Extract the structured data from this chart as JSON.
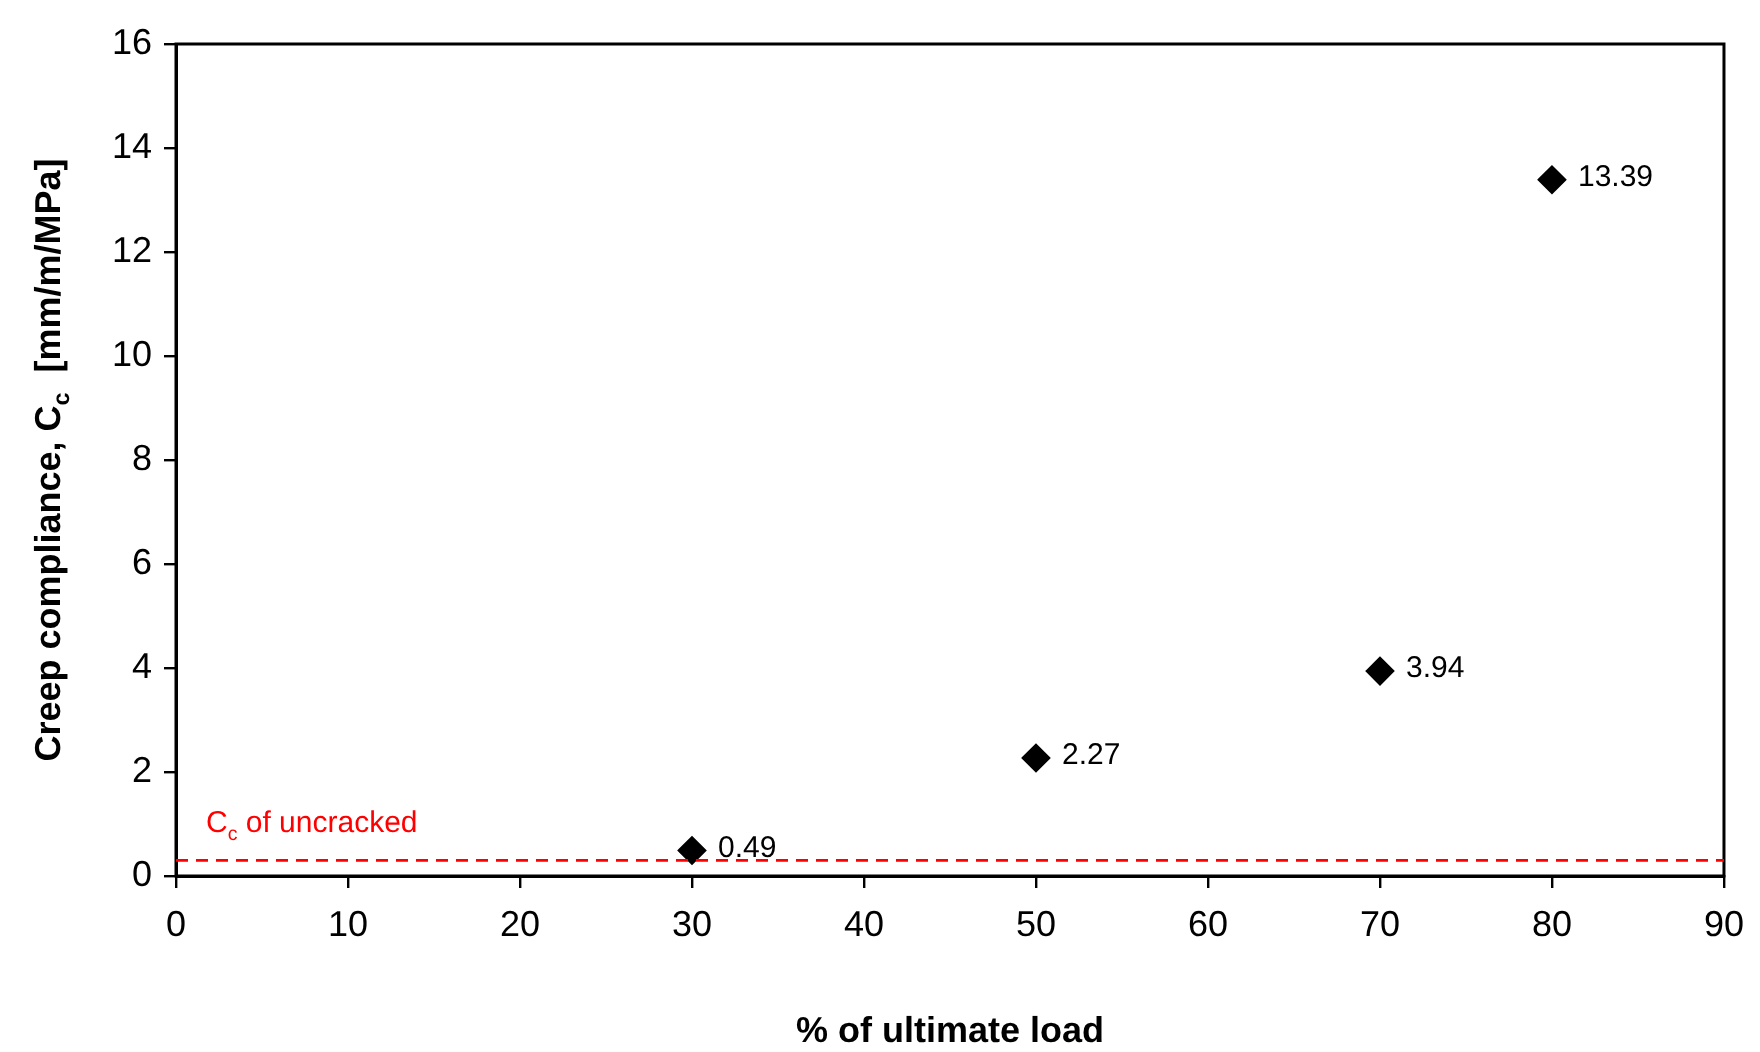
{
  "chart_data": {
    "type": "scatter",
    "xlabel": "% of ultimate load",
    "ylabel": "Creep compliance, C$_{c}$  [mm/m/MPa]",
    "x": [
      30,
      50,
      70,
      80
    ],
    "values": [
      0.49,
      2.27,
      3.94,
      13.39
    ],
    "color": "#000000",
    "marker": "diamond",
    "data_labels": true,
    "xlim": [
      0,
      90
    ],
    "xticks": [
      0,
      10,
      20,
      30,
      40,
      50,
      60,
      70,
      80,
      90
    ],
    "ylim": [
      0,
      16
    ],
    "yticks": [
      0,
      2,
      4,
      6,
      8,
      10,
      12,
      14,
      16
    ],
    "ref_lines": [
      {
        "axis": "y",
        "value": 0.3,
        "label": "C$_{c}$ of uncracked",
        "color": "#ff0000",
        "line_style": "dashed"
      }
    ]
  }
}
